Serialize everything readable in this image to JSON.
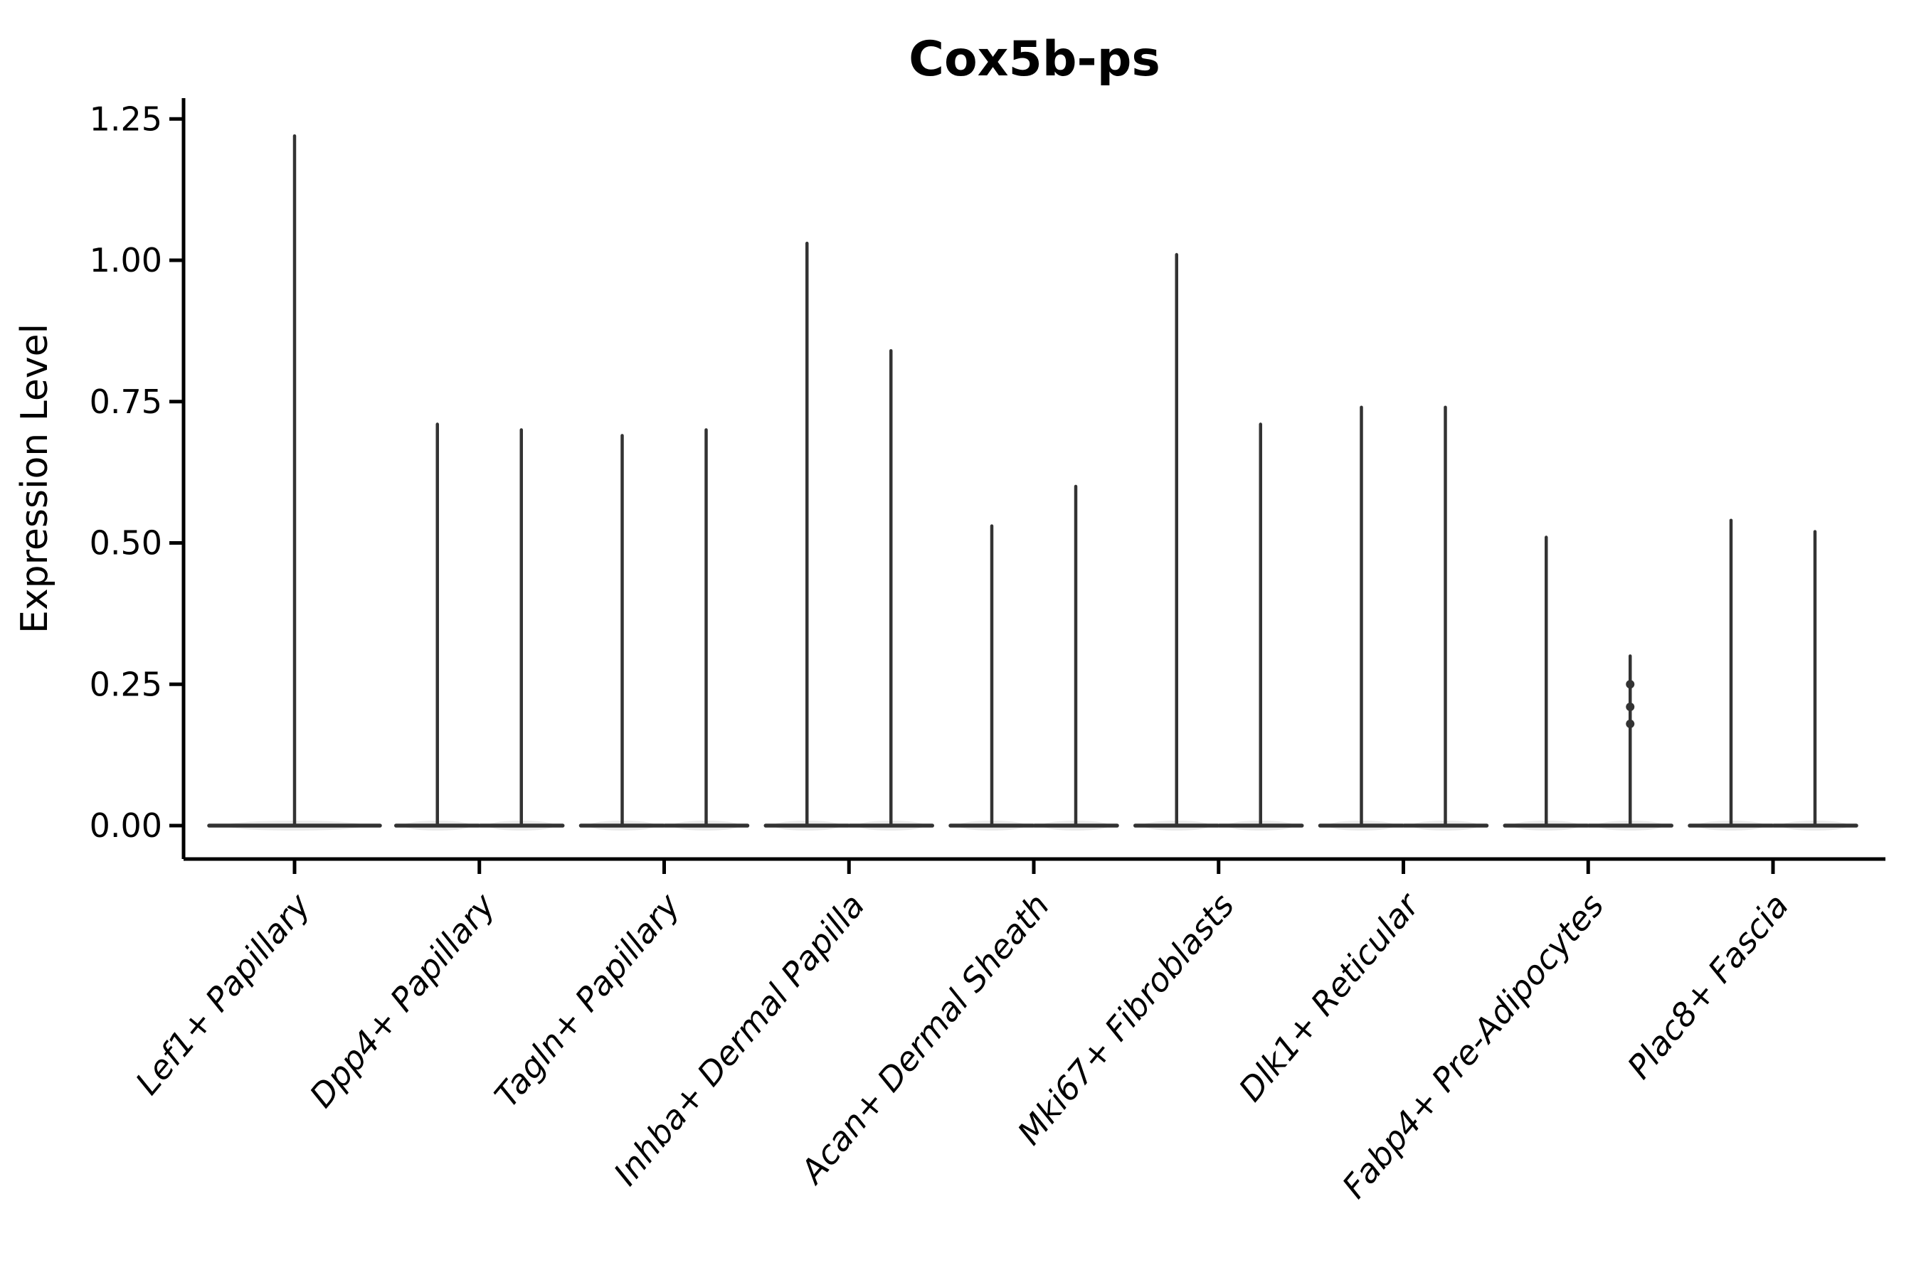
{
  "colors": {
    "background": "#ffffff",
    "violin": "#333333",
    "violin_soft": "#8a8a8a",
    "axis": "#000000",
    "text": "#000000"
  },
  "chart_data": {
    "type": "violin",
    "title": "Cox5b-ps",
    "xlabel": "",
    "ylabel": "Expression Level",
    "grid": false,
    "legend_position": "none",
    "ylim": [
      -0.06,
      1.29
    ],
    "yticks": [
      0.0,
      0.25,
      0.5,
      0.75,
      1.0,
      1.25
    ],
    "ytick_labels": [
      "0.00",
      "0.25",
      "0.50",
      "0.75",
      "1.00",
      "1.25"
    ],
    "categories": [
      "Lef1+ Papillary",
      "Dpp4+ Papillary",
      "Tagln+ Papillary",
      "Inhba+ Dermal Papilla",
      "Acan+ Dermal Sheath",
      "Mki67+ Fibroblasts",
      "Dlk1+ Reticular",
      "Fabp4+ Pre-Adipocytes",
      "Plac8+ Fascia"
    ],
    "groups": [
      {
        "label": "Lef1+ Papillary",
        "violins": [
          {
            "position": "center",
            "min": 0.0,
            "max": 1.22
          }
        ]
      },
      {
        "label": "Dpp4+ Papillary",
        "violins": [
          {
            "position": "left",
            "min": 0.0,
            "max": 0.71
          },
          {
            "position": "right",
            "min": 0.0,
            "max": 0.7
          }
        ]
      },
      {
        "label": "Tagln+ Papillary",
        "violins": [
          {
            "position": "left",
            "min": 0.0,
            "max": 0.69
          },
          {
            "position": "right",
            "min": 0.0,
            "max": 0.7
          }
        ]
      },
      {
        "label": "Inhba+ Dermal Papilla",
        "violins": [
          {
            "position": "left",
            "min": 0.0,
            "max": 1.03
          },
          {
            "position": "right",
            "min": 0.0,
            "max": 0.84
          }
        ]
      },
      {
        "label": "Acan+ Dermal Sheath",
        "violins": [
          {
            "position": "left",
            "min": 0.0,
            "max": 0.53
          },
          {
            "position": "right",
            "min": 0.0,
            "max": 0.6
          }
        ]
      },
      {
        "label": "Mki67+ Fibroblasts",
        "violins": [
          {
            "position": "left",
            "min": 0.0,
            "max": 1.01
          },
          {
            "position": "right",
            "min": 0.0,
            "max": 0.71
          }
        ]
      },
      {
        "label": "Dlk1+ Reticular",
        "violins": [
          {
            "position": "left",
            "min": 0.0,
            "max": 0.74
          },
          {
            "position": "right",
            "min": 0.0,
            "max": 0.74
          }
        ]
      },
      {
        "label": "Fabp4+ Pre-Adipocytes",
        "violins": [
          {
            "position": "left",
            "min": 0.0,
            "max": 0.51
          },
          {
            "position": "right",
            "min": 0.0,
            "max": 0.3,
            "dots": [
              0.25,
              0.21,
              0.18
            ]
          }
        ]
      },
      {
        "label": "Plac8+ Fascia",
        "violins": [
          {
            "position": "left",
            "min": 0.0,
            "max": 0.54
          },
          {
            "position": "right",
            "min": 0.0,
            "max": 0.52
          }
        ]
      }
    ]
  }
}
